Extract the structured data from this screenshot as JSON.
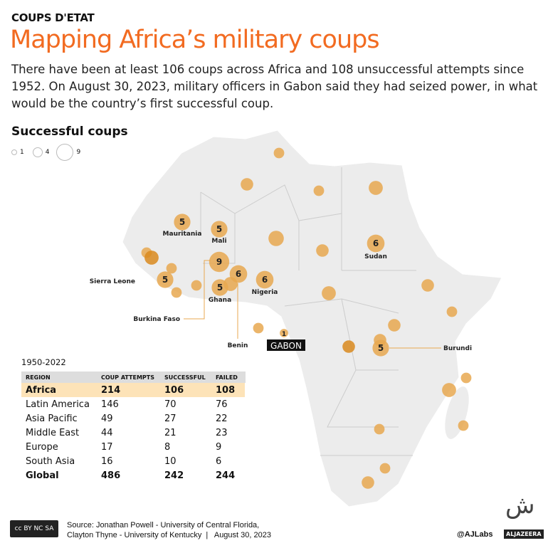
{
  "header": {
    "kicker": "COUPS D'ETAT",
    "title": "Mapping Africa’s military coups",
    "description": "There have been at least 106 coups across Africa and 108 unsuccessful attempts since 1952. On August 30, 2023, military officers in Gabon said they had seized power, in what would be the country’s first successful coup."
  },
  "legend": {
    "title": "Successful coups",
    "sizes": [
      "1",
      "4",
      "9"
    ]
  },
  "colors": {
    "accent": "#f26b21",
    "bubble": "#e8a850",
    "bubble_dark": "#d98a1e",
    "land": "#ececec",
    "highlight_row": "#fde3b8"
  },
  "map": {
    "labeled": [
      {
        "label": "Mauritania",
        "count": 5
      },
      {
        "label": "Mali",
        "count": 5
      },
      {
        "label": "Burkina Faso",
        "count": 9
      },
      {
        "label": "Sierra Leone",
        "count": 5
      },
      {
        "label": "Ghana",
        "count": 5
      },
      {
        "label": "Benin",
        "count": 6
      },
      {
        "label": "Nigeria",
        "count": 6
      },
      {
        "label": "Sudan",
        "count": 6
      },
      {
        "label": "GABON",
        "count": 1
      },
      {
        "label": "Burundi",
        "count": 5
      }
    ],
    "unlabeled_counts": [
      1,
      2,
      1,
      3,
      4,
      2,
      1,
      3,
      1,
      1,
      1,
      3,
      3,
      2,
      1,
      1,
      2,
      2,
      2,
      1,
      3,
      1,
      1,
      1,
      2
    ]
  },
  "table": {
    "period": "1950-2022",
    "headers": [
      "REGION",
      "COUP ATTEMPTS",
      "SUCCESSFUL",
      "FAILED"
    ],
    "rows": [
      [
        "Africa",
        "214",
        "106",
        "108"
      ],
      [
        "Latin America",
        "146",
        "70",
        "76"
      ],
      [
        "Asia Pacific",
        "49",
        "27",
        "22"
      ],
      [
        "Middle East",
        "44",
        "21",
        "23"
      ],
      [
        "Europe",
        "17",
        "8",
        "9"
      ],
      [
        "South Asia",
        "16",
        "10",
        "6"
      ],
      [
        "Global",
        "486",
        "242",
        "244"
      ]
    ]
  },
  "footer": {
    "source_line1": "Source: Jonathan Powell - University of Central Florida,",
    "source_line2": "Clayton Thyne - University of Kentucky  |   August 30, 2023",
    "license": "cc BY NC SA",
    "handle": "@AJLabs",
    "brand": "ALJAZEERA"
  }
}
